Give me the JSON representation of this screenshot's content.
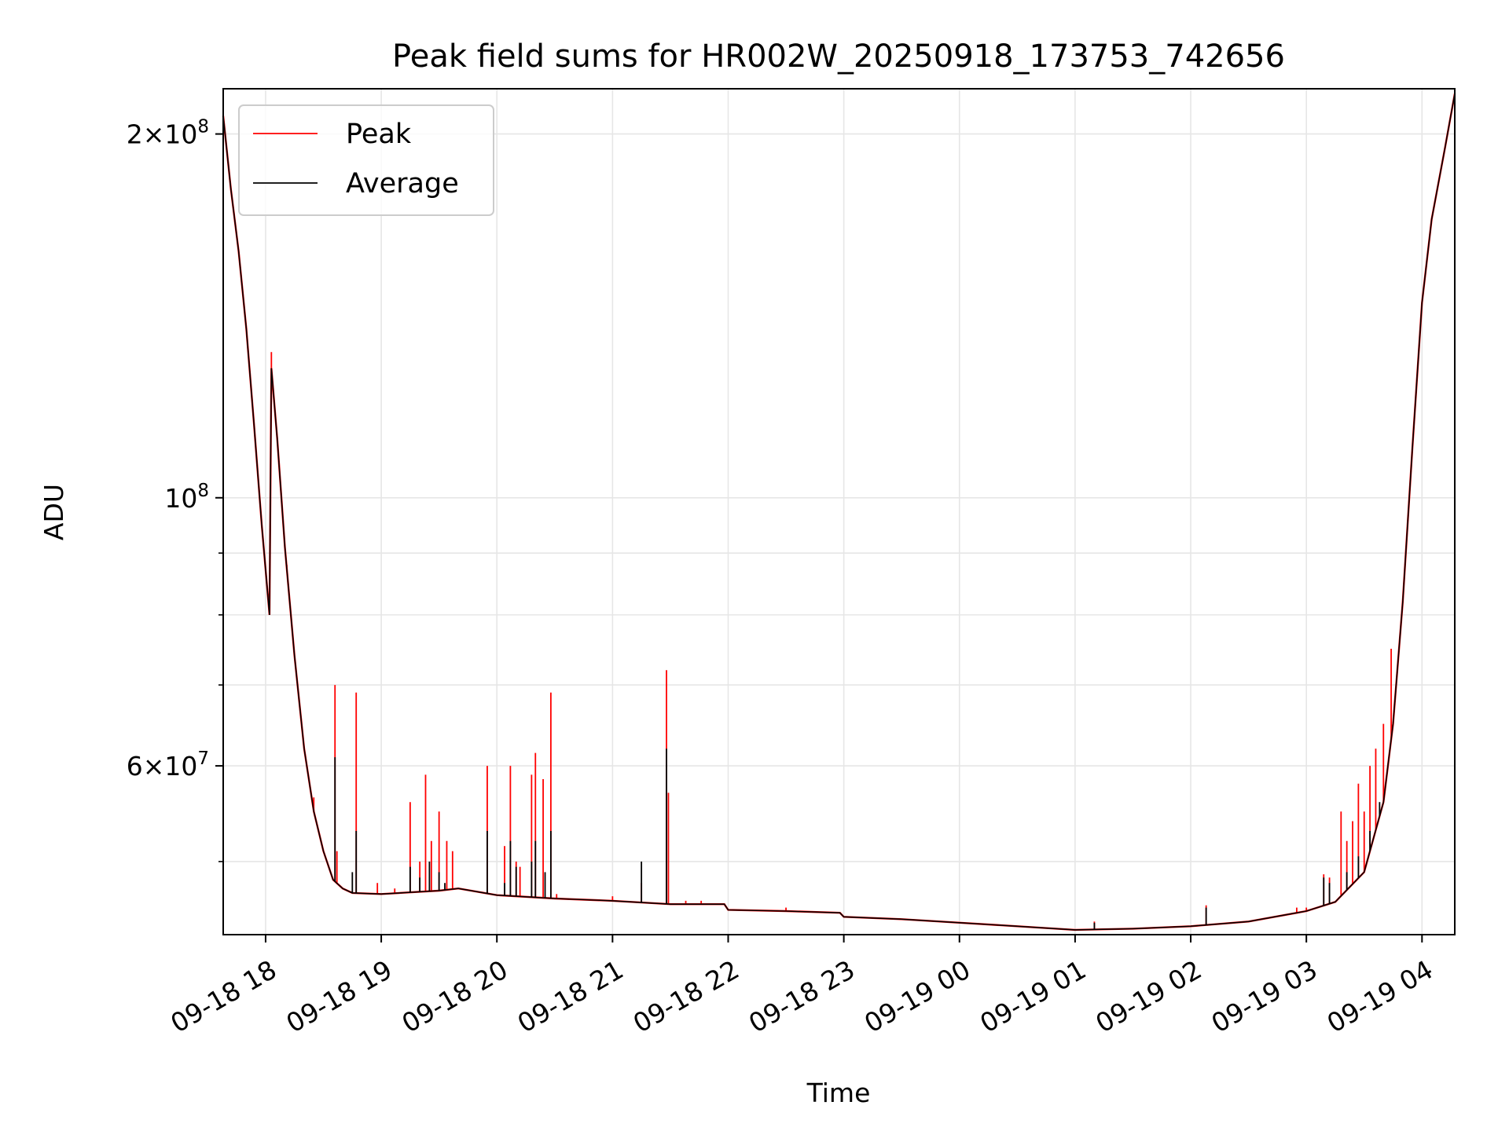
{
  "chart_data": {
    "type": "line",
    "title": "Peak field sums for HR002W_20250918_173753_742656",
    "xlabel": "Time",
    "ylabel": "ADU",
    "y_scale": "log",
    "ylim": [
      43500000,
      218000000
    ],
    "xlim": [
      "2025-09-18 17:38",
      "2025-09-19 04:17"
    ],
    "x_tick_labels": [
      "09-18 18",
      "09-18 19",
      "09-18 20",
      "09-18 21",
      "09-18 22",
      "09-18 23",
      "09-19 00",
      "09-19 01",
      "09-19 02",
      "09-19 03",
      "09-19 04"
    ],
    "x_tick_times": [
      "2025-09-18 18:00",
      "2025-09-18 19:00",
      "2025-09-18 20:00",
      "2025-09-18 21:00",
      "2025-09-18 22:00",
      "2025-09-18 23:00",
      "2025-09-19 00:00",
      "2025-09-19 01:00",
      "2025-09-19 02:00",
      "2025-09-19 03:00",
      "2025-09-19 04:00"
    ],
    "y_major_ticks": [
      {
        "value": 60000000,
        "mantissa": "6",
        "base": "10",
        "exp": "7"
      },
      {
        "value": 100000000,
        "mantissa": "",
        "base": "10",
        "exp": "8"
      },
      {
        "value": 200000000,
        "mantissa": "2",
        "base": "10",
        "exp": "8"
      }
    ],
    "y_minor_ticks": [
      50000000,
      70000000,
      80000000,
      90000000
    ],
    "grid": true,
    "legend_position": "upper-left",
    "series": [
      {
        "name": "Average",
        "color": "#000000",
        "points": [
          [
            "2025-09-18 17:38",
            207000000
          ],
          [
            "2025-09-18 17:42",
            180000000
          ],
          [
            "2025-09-18 17:46",
            160000000
          ],
          [
            "2025-09-18 17:50",
            138000000
          ],
          [
            "2025-09-18 17:54",
            115000000
          ],
          [
            "2025-09-18 17:58",
            95000000
          ],
          [
            "2025-09-18 18:02",
            80000000
          ],
          [
            "2025-09-18 18:03",
            128000000
          ],
          [
            "2025-09-18 18:06",
            112000000
          ],
          [
            "2025-09-18 18:10",
            91000000
          ],
          [
            "2025-09-18 18:15",
            74000000
          ],
          [
            "2025-09-18 18:20",
            62000000
          ],
          [
            "2025-09-18 18:25",
            55000000
          ],
          [
            "2025-09-18 18:30",
            51000000
          ],
          [
            "2025-09-18 18:35",
            48300000
          ],
          [
            "2025-09-18 18:40",
            47500000
          ],
          [
            "2025-09-18 18:45",
            47100000
          ],
          [
            "2025-09-18 19:00",
            47000000
          ],
          [
            "2025-09-18 19:30",
            47300000
          ],
          [
            "2025-09-18 19:40",
            47500000
          ],
          [
            "2025-09-18 20:00",
            46900000
          ],
          [
            "2025-09-18 20:30",
            46600000
          ],
          [
            "2025-09-18 21:00",
            46400000
          ],
          [
            "2025-09-18 21:30",
            46100000
          ],
          [
            "2025-09-18 21:58",
            46100000
          ],
          [
            "2025-09-18 22:00",
            45600000
          ],
          [
            "2025-09-18 22:30",
            45500000
          ],
          [
            "2025-09-18 22:58",
            45350000
          ],
          [
            "2025-09-18 23:00",
            45000000
          ],
          [
            "2025-09-18 23:30",
            44800000
          ],
          [
            "2025-09-19 00:00",
            44500000
          ],
          [
            "2025-09-19 00:30",
            44200000
          ],
          [
            "2025-09-19 01:00",
            43900000
          ],
          [
            "2025-09-19 01:30",
            44000000
          ],
          [
            "2025-09-19 02:00",
            44200000
          ],
          [
            "2025-09-19 02:30",
            44600000
          ],
          [
            "2025-09-19 03:00",
            45500000
          ],
          [
            "2025-09-19 03:15",
            46300000
          ],
          [
            "2025-09-19 03:30",
            49000000
          ],
          [
            "2025-09-19 03:40",
            56000000
          ],
          [
            "2025-09-19 03:45",
            65000000
          ],
          [
            "2025-09-19 03:50",
            82000000
          ],
          [
            "2025-09-19 03:55",
            110000000
          ],
          [
            "2025-09-19 04:00",
            145000000
          ],
          [
            "2025-09-19 04:05",
            170000000
          ],
          [
            "2025-09-19 04:12",
            195000000
          ],
          [
            "2025-09-19 04:17",
            216000000
          ]
        ],
        "spikes": [
          [
            "2025-09-18 18:36",
            61000000
          ],
          [
            "2025-09-18 18:47",
            53000000
          ],
          [
            "2025-09-18 18:45",
            49000000
          ],
          [
            "2025-09-18 19:15",
            49500000
          ],
          [
            "2025-09-18 19:20",
            48500000
          ],
          [
            "2025-09-18 19:25",
            50000000
          ],
          [
            "2025-09-18 19:30",
            49000000
          ],
          [
            "2025-09-18 19:33",
            48000000
          ],
          [
            "2025-09-18 19:55",
            53000000
          ],
          [
            "2025-09-18 20:04",
            48000000
          ],
          [
            "2025-09-18 20:07",
            52000000
          ],
          [
            "2025-09-18 20:10",
            49500000
          ],
          [
            "2025-09-18 20:18",
            50000000
          ],
          [
            "2025-09-18 20:20",
            52000000
          ],
          [
            "2025-09-18 20:25",
            49000000
          ],
          [
            "2025-09-18 20:28",
            53000000
          ],
          [
            "2025-09-18 21:15",
            50000000
          ],
          [
            "2025-09-18 21:28",
            62000000
          ],
          [
            "2025-09-19 01:10",
            44500000
          ],
          [
            "2025-09-19 02:08",
            45800000
          ],
          [
            "2025-09-19 03:09",
            48500000
          ],
          [
            "2025-09-19 03:12",
            48000000
          ],
          [
            "2025-09-19 03:21",
            49000000
          ],
          [
            "2025-09-19 03:27",
            50500000
          ],
          [
            "2025-09-19 03:33",
            53000000
          ],
          [
            "2025-09-19 03:38",
            56000000
          ]
        ]
      },
      {
        "name": "Peak",
        "color": "#ff0000",
        "spikes": [
          [
            "2025-09-18 18:03",
            132000000
          ],
          [
            "2025-09-18 18:11",
            88000000
          ],
          [
            "2025-09-18 18:25",
            56500000
          ],
          [
            "2025-09-18 18:36",
            70000000
          ],
          [
            "2025-09-18 18:37",
            51000000
          ],
          [
            "2025-09-18 18:47",
            69000000
          ],
          [
            "2025-09-18 18:58",
            48000000
          ],
          [
            "2025-09-18 19:07",
            47500000
          ],
          [
            "2025-09-18 19:15",
            56000000
          ],
          [
            "2025-09-18 19:20",
            50000000
          ],
          [
            "2025-09-18 19:23",
            59000000
          ],
          [
            "2025-09-18 19:26",
            52000000
          ],
          [
            "2025-09-18 19:30",
            55000000
          ],
          [
            "2025-09-18 19:34",
            52000000
          ],
          [
            "2025-09-18 19:37",
            51000000
          ],
          [
            "2025-09-18 19:55",
            60000000
          ],
          [
            "2025-09-18 20:04",
            51500000
          ],
          [
            "2025-09-18 20:07",
            60000000
          ],
          [
            "2025-09-18 20:10",
            50000000
          ],
          [
            "2025-09-18 20:12",
            49500000
          ],
          [
            "2025-09-18 20:18",
            59000000
          ],
          [
            "2025-09-18 20:20",
            61500000
          ],
          [
            "2025-09-18 20:24",
            58500000
          ],
          [
            "2025-09-18 20:28",
            69000000
          ],
          [
            "2025-09-18 20:31",
            47000000
          ],
          [
            "2025-09-18 21:00",
            46800000
          ],
          [
            "2025-09-18 21:15",
            48000000
          ],
          [
            "2025-09-18 21:28",
            72000000
          ],
          [
            "2025-09-18 21:29",
            57000000
          ],
          [
            "2025-09-18 21:38",
            46400000
          ],
          [
            "2025-09-18 21:46",
            46400000
          ],
          [
            "2025-09-18 22:30",
            45800000
          ],
          [
            "2025-09-19 01:10",
            44600000
          ],
          [
            "2025-09-19 02:08",
            46000000
          ],
          [
            "2025-09-19 02:55",
            45800000
          ],
          [
            "2025-09-19 03:00",
            45800000
          ],
          [
            "2025-09-19 03:05",
            45800000
          ],
          [
            "2025-09-19 03:09",
            48800000
          ],
          [
            "2025-09-19 03:12",
            48500000
          ],
          [
            "2025-09-19 03:18",
            55000000
          ],
          [
            "2025-09-19 03:21",
            52000000
          ],
          [
            "2025-09-19 03:24",
            54000000
          ],
          [
            "2025-09-19 03:27",
            58000000
          ],
          [
            "2025-09-19 03:30",
            55000000
          ],
          [
            "2025-09-19 03:33",
            60000000
          ],
          [
            "2025-09-19 03:36",
            62000000
          ],
          [
            "2025-09-19 03:40",
            65000000
          ],
          [
            "2025-09-19 03:44",
            75000000
          ]
        ]
      }
    ]
  }
}
